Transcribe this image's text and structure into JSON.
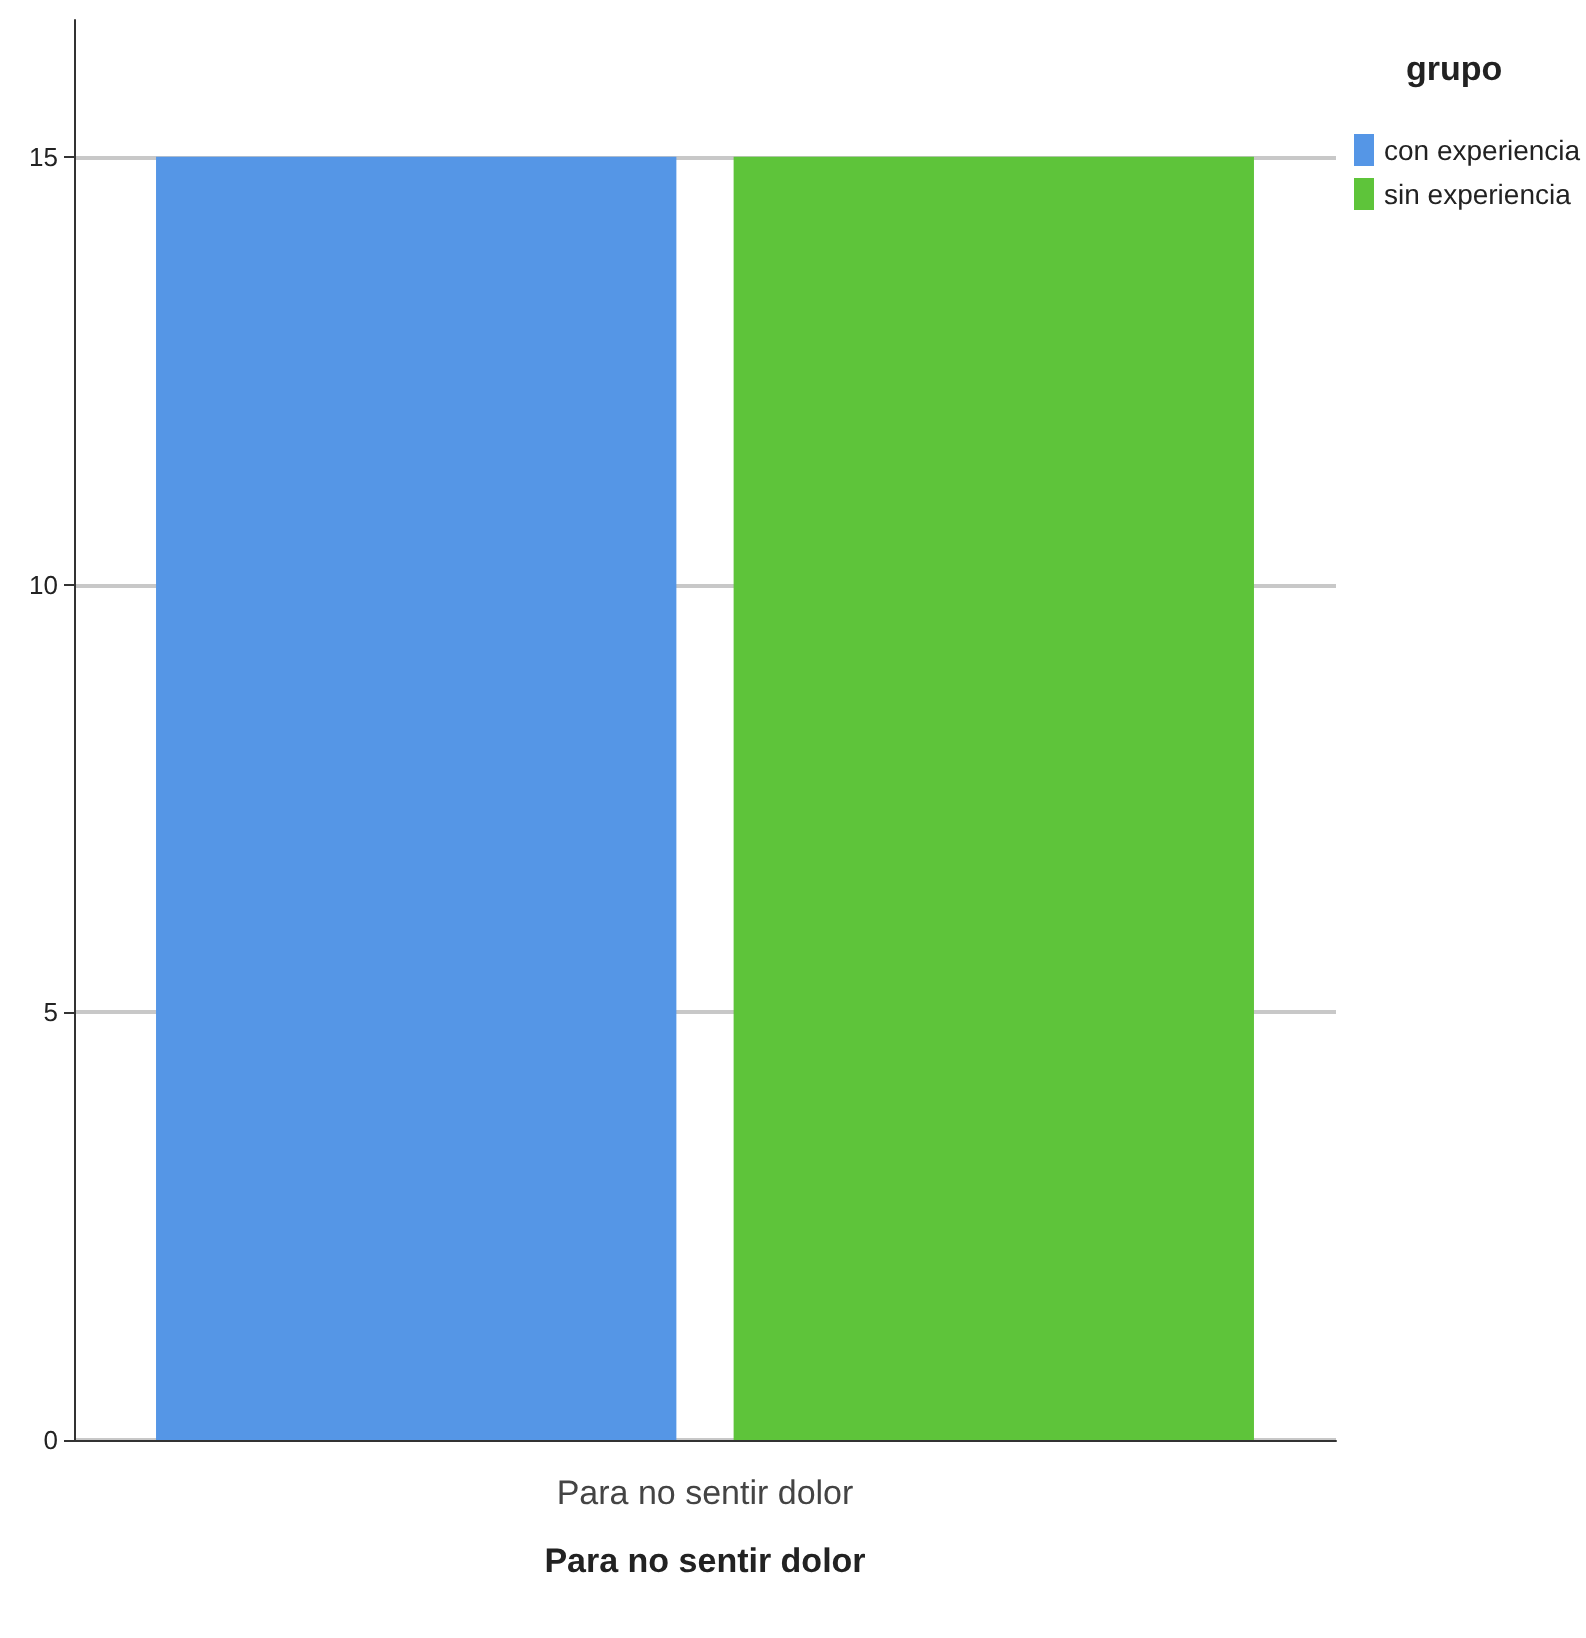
{
  "chart_data": {
    "type": "bar",
    "xlabel": "Para no sentir dolor",
    "legend_title": "grupo",
    "categories": [
      "Para no sentir dolor"
    ],
    "series": [
      {
        "name": "con experiencia",
        "color": "#5596e6",
        "values": [
          15
        ]
      },
      {
        "name": "sin experiencia",
        "color": "#5ec43a",
        "values": [
          15
        ]
      }
    ],
    "ylim": [
      0,
      16.6
    ],
    "yticks": [
      0,
      5,
      10,
      15
    ],
    "grid": "y",
    "legend": "top right"
  }
}
